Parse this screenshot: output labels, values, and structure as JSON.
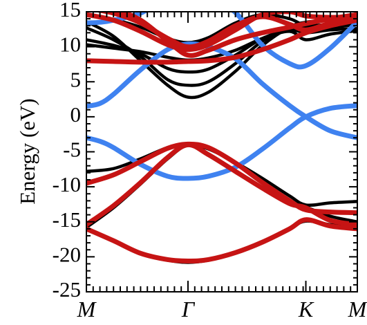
{
  "chart_data": {
    "type": "line",
    "title": "",
    "xlabel": "",
    "ylabel": "Energy (eV)",
    "ylim": [
      -25,
      15
    ],
    "yticks": [
      15,
      10,
      5,
      0,
      -5,
      -10,
      -15,
      -20,
      -25
    ],
    "xlim": [
      0,
      1
    ],
    "high_symmetry_points": [
      {
        "label": "M",
        "x": 0.0
      },
      {
        "label": "Γ",
        "x": 0.375
      },
      {
        "label": "K",
        "x": 0.81
      },
      {
        "label": "M",
        "x": 1.0
      }
    ],
    "grid": false,
    "colors": {
      "black_bands": "#000000",
      "blue_bands": "#3f82f0",
      "red_bands": "#c61414"
    },
    "series": [
      {
        "color": "black",
        "x": [
          0,
          0.1,
          0.2,
          0.3,
          0.375,
          0.45,
          0.55,
          0.65,
          0.75,
          0.81,
          0.9,
          1.0
        ],
        "y": [
          -7.8,
          -7.4,
          -6.0,
          -4.4,
          -3.9,
          -4.6,
          -6.5,
          -8.8,
          -11.3,
          -12.6,
          -12.3,
          -12.1
        ]
      },
      {
        "color": "black",
        "x": [
          0,
          0.1,
          0.2,
          0.3,
          0.375,
          0.45,
          0.55,
          0.65,
          0.75,
          0.81,
          0.9,
          1.0
        ],
        "y": [
          -15.8,
          -13.0,
          -9.6,
          -6.0,
          -4.1,
          -5.5,
          -7.9,
          -10.2,
          -12.2,
          -12.9,
          -14.2,
          -15.0
        ]
      },
      {
        "color": "black",
        "x": [
          0,
          0.1,
          0.2,
          0.3,
          0.375,
          0.45,
          0.55,
          0.65,
          0.75,
          0.81,
          0.9,
          1.0
        ],
        "y": [
          -16.1,
          -17.8,
          -19.6,
          -20.5,
          -20.8,
          -20.5,
          -19.5,
          -18.0,
          -16.0,
          -14.9,
          -15.4,
          -15.8
        ]
      },
      {
        "color": "black",
        "x": [
          0,
          0.1,
          0.2,
          0.3,
          0.375,
          0.45,
          0.55,
          0.65,
          0.75,
          0.81,
          0.9,
          1.0
        ],
        "y": [
          13.6,
          11.5,
          8.0,
          4.5,
          2.8,
          3.5,
          6.5,
          10.2,
          12.8,
          13.5,
          13.8,
          14.0
        ]
      },
      {
        "color": "black",
        "x": [
          0,
          0.1,
          0.2,
          0.3,
          0.375,
          0.45,
          0.55,
          0.65,
          0.75,
          0.81,
          0.9,
          1.0
        ],
        "y": [
          12.7,
          11.0,
          8.6,
          5.3,
          4.5,
          5.0,
          7.6,
          10.8,
          12.5,
          12.9,
          13.2,
          13.4
        ]
      },
      {
        "color": "black",
        "x": [
          0,
          0.1,
          0.2,
          0.3,
          0.375,
          0.45,
          0.55,
          0.65,
          0.75,
          0.81,
          0.9,
          1.0
        ],
        "y": [
          11.0,
          10.2,
          9.0,
          6.9,
          6.4,
          6.8,
          8.8,
          11.2,
          12.4,
          12.0,
          12.4,
          12.6
        ]
      },
      {
        "color": "black",
        "x": [
          0,
          0.1,
          0.2,
          0.3,
          0.375,
          0.45,
          0.55,
          0.65,
          0.75,
          0.81,
          0.9,
          1.0
        ],
        "y": [
          14.6,
          13.9,
          12.8,
          11.2,
          10.6,
          11.3,
          13.4,
          14.6,
          14.0,
          13.0,
          12.8,
          13.2
        ]
      },
      {
        "color": "black",
        "x": [
          0,
          0.1,
          0.2,
          0.3,
          0.375,
          0.45,
          0.55,
          0.65,
          0.75,
          0.81,
          0.9,
          1.0
        ],
        "y": [
          10.3,
          9.8,
          9.3,
          8.5,
          8.1,
          8.4,
          9.5,
          11.2,
          12.2,
          11.0,
          11.8,
          12.3
        ]
      },
      {
        "color": "blue",
        "x": [
          0,
          0.05,
          0.1,
          0.2,
          0.3,
          0.375,
          0.45,
          0.55,
          0.65,
          0.75,
          0.81,
          0.9,
          1.0
        ],
        "y": [
          -3.0,
          -3.5,
          -4.4,
          -6.8,
          -8.5,
          -8.8,
          -8.5,
          -7.2,
          -4.6,
          -1.6,
          0.0,
          1.2,
          1.6
        ]
      },
      {
        "color": "blue",
        "x": [
          0,
          0.05,
          0.1,
          0.2,
          0.3,
          0.375,
          0.45,
          0.55,
          0.65,
          0.75,
          0.81,
          0.9,
          1.0
        ],
        "y": [
          1.5,
          1.9,
          3.2,
          6.7,
          9.6,
          10.4,
          10.0,
          8.3,
          4.7,
          1.6,
          0.0,
          -2.0,
          -3.0
        ]
      },
      {
        "color": "blue",
        "x": [
          0,
          0.05,
          0.1,
          0.2,
          0.3,
          0.375,
          0.45,
          0.55,
          0.65,
          0.75,
          0.81,
          0.9,
          1.0
        ],
        "y": [
          13.4,
          13.5,
          13.8,
          14.8,
          17.0,
          18.0,
          17.2,
          14.9,
          10.2,
          7.6,
          7.3,
          9.8,
          13.6
        ]
      },
      {
        "color": "red",
        "x": [
          0,
          0.1,
          0.2,
          0.3,
          0.375,
          0.45,
          0.55,
          0.65,
          0.75,
          0.81,
          0.9,
          1.0
        ],
        "y": [
          -9.5,
          -8.3,
          -6.4,
          -4.5,
          -3.9,
          -4.4,
          -6.6,
          -9.4,
          -12.0,
          -13.3,
          -13.6,
          -13.7
        ]
      },
      {
        "color": "red",
        "x": [
          0,
          0.1,
          0.2,
          0.3,
          0.375,
          0.45,
          0.55,
          0.65,
          0.75,
          0.81,
          0.9,
          1.0
        ],
        "y": [
          -15.4,
          -12.7,
          -9.4,
          -5.8,
          -4.0,
          -5.4,
          -7.8,
          -10.2,
          -12.4,
          -13.0,
          -14.8,
          -15.4
        ]
      },
      {
        "color": "red",
        "x": [
          0,
          0.1,
          0.2,
          0.3,
          0.375,
          0.45,
          0.55,
          0.65,
          0.75,
          0.81,
          0.9,
          1.0
        ],
        "y": [
          -16.0,
          -17.7,
          -19.5,
          -20.4,
          -20.6,
          -20.4,
          -19.4,
          -17.9,
          -16.0,
          -14.7,
          -15.6,
          -16.0
        ]
      },
      {
        "color": "red",
        "x": [
          0,
          0.1,
          0.2,
          0.3,
          0.375,
          0.45,
          0.55,
          0.65,
          0.75,
          0.81,
          0.9,
          1.0
        ],
        "y": [
          8.0,
          7.9,
          7.8,
          7.8,
          7.9,
          8.0,
          8.5,
          9.6,
          11.0,
          12.0,
          13.0,
          13.8
        ]
      },
      {
        "color": "red",
        "x": [
          0,
          0.1,
          0.2,
          0.3,
          0.375,
          0.45,
          0.55,
          0.65,
          0.75,
          0.81,
          0.9,
          1.0
        ],
        "y": [
          14.6,
          13.8,
          12.2,
          10.3,
          9.6,
          10.3,
          12.4,
          14.6,
          15.0,
          14.4,
          14.2,
          14.3
        ]
      },
      {
        "color": "red",
        "x": [
          0,
          0.1,
          0.2,
          0.3,
          0.375,
          0.45,
          0.55,
          0.65,
          0.75,
          0.81,
          0.9,
          1.0
        ],
        "y": [
          15.5,
          14.8,
          13.4,
          11.2,
          10.0,
          10.8,
          13.0,
          14.3,
          13.2,
          12.4,
          13.4,
          14.6
        ]
      },
      {
        "color": "red",
        "x": [
          0,
          0.1,
          0.2,
          0.3,
          0.375,
          0.45,
          0.55,
          0.65,
          0.75,
          0.81,
          0.9,
          1.0
        ],
        "y": [
          16.0,
          15.4,
          13.8,
          10.8,
          8.8,
          9.5,
          11.0,
          12.0,
          12.8,
          13.3,
          14.0,
          14.6
        ]
      }
    ]
  }
}
